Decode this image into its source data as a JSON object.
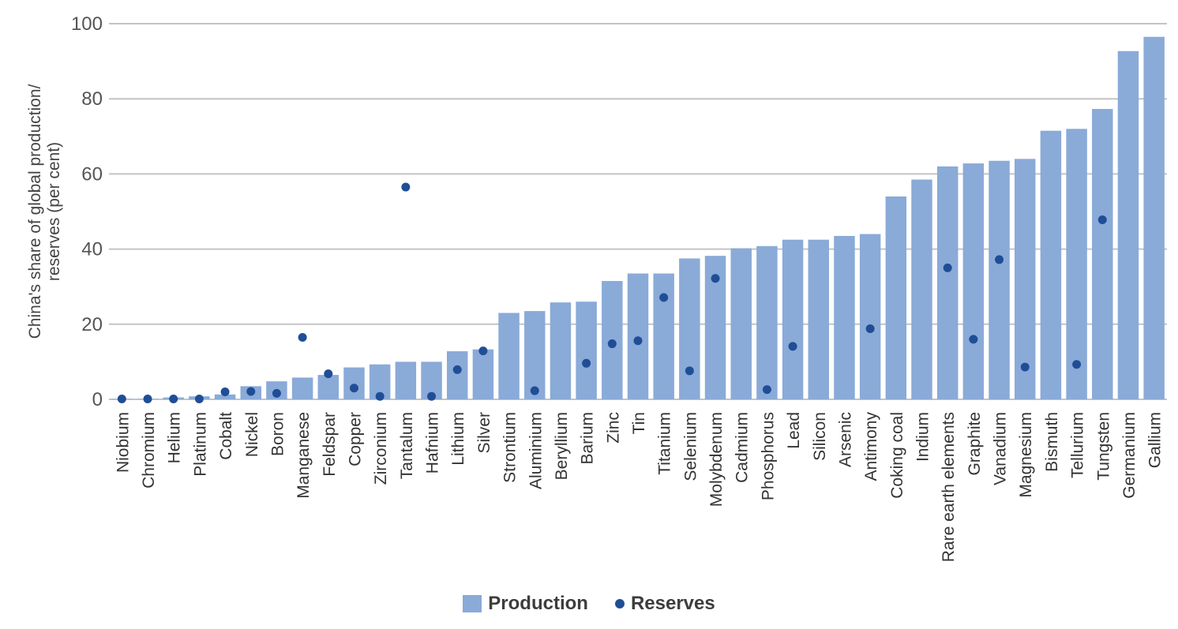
{
  "chart_data": {
    "type": "bar",
    "ylabel": "China's share of global production/ reserves (per cent)",
    "ylim": [
      0,
      100
    ],
    "yticks": [
      0,
      20,
      40,
      60,
      80,
      100
    ],
    "grid": true,
    "legend_position": "bottom",
    "categories": [
      "Niobium",
      "Chromium",
      "Helium",
      "Platinum",
      "Cobalt",
      "Nickel",
      "Boron",
      "Manganese",
      "Feldspar",
      "Copper",
      "Zirconium",
      "Tantalum",
      "Hafnium",
      "Lithium",
      "Silver",
      "Strontium",
      "Aluminium",
      "Beryllium",
      "Barium",
      "Zinc",
      "Tin",
      "Titanium",
      "Selenium",
      "Molybdenum",
      "Cadmium",
      "Phosphorus",
      "Lead",
      "Silicon",
      "Arsenic",
      "Antimony",
      "Coking coal",
      "Indium",
      "Rare earth elements",
      "Graphite",
      "Vanadium",
      "Magnesium",
      "Bismuth",
      "Tellurium",
      "Tungsten",
      "Germanium",
      "Gallium"
    ],
    "series": [
      {
        "name": "Production",
        "type": "bar",
        "color": "#8aaad8",
        "values": [
          0.1,
          0.1,
          0.5,
          0.8,
          1.3,
          3.5,
          4.8,
          5.8,
          6.5,
          8.5,
          9.3,
          10.0,
          10.0,
          12.8,
          13.3,
          23.0,
          23.5,
          25.8,
          26.0,
          31.5,
          33.5,
          33.5,
          37.5,
          38.2,
          40.2,
          40.8,
          42.5,
          42.5,
          43.5,
          44.0,
          54.0,
          58.5,
          62.0,
          62.8,
          63.5,
          64.0,
          71.5,
          72.0,
          77.3,
          92.7,
          96.5
        ]
      },
      {
        "name": "Reserves",
        "type": "scatter",
        "color": "#1f4e96",
        "values": [
          0.1,
          0.1,
          0.1,
          0.1,
          2.0,
          2.1,
          1.6,
          16.5,
          6.8,
          3.0,
          0.8,
          56.5,
          0.8,
          7.9,
          12.9,
          null,
          2.3,
          null,
          9.6,
          14.8,
          15.6,
          27.1,
          7.6,
          32.2,
          null,
          2.6,
          14.1,
          null,
          null,
          18.8,
          null,
          null,
          35.0,
          16.0,
          37.2,
          8.6,
          null,
          9.3,
          47.8,
          null,
          null
        ]
      }
    ]
  }
}
